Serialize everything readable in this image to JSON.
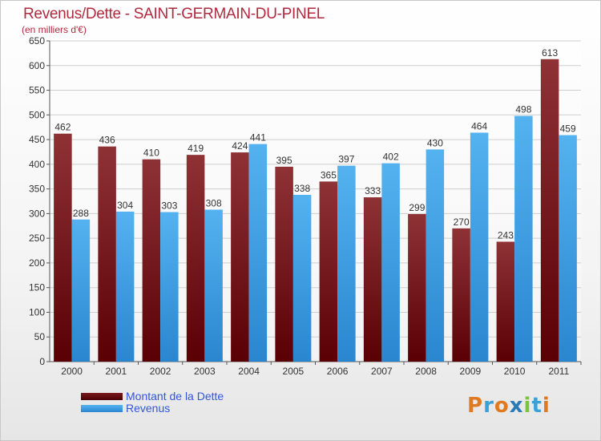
{
  "header": {
    "title": "Revenus/Dette - SAINT-GERMAIN-DU-PINEL",
    "subtitle": "(en milliers d'€)"
  },
  "colors": {
    "debt": "#7a1a1e",
    "revenue": "#3d9ce3",
    "title": "#b02a3e"
  },
  "legend": {
    "debt_label": "Montant de la Dette",
    "revenue_label": "Revenus"
  },
  "logo": {
    "text": "Proxiti",
    "colors": [
      "#e07a22",
      "#3aa0d8",
      "#e07a22",
      "#2a7ab8",
      "#7cc242",
      "#3aa0d8",
      "#e07a22"
    ]
  },
  "chart_data": {
    "type": "bar",
    "title": "Revenus/Dette - SAINT-GERMAIN-DU-PINEL",
    "subtitle": "(en milliers d'€)",
    "xlabel": "",
    "ylabel": "",
    "categories": [
      "2000",
      "2001",
      "2002",
      "2003",
      "2004",
      "2005",
      "2006",
      "2007",
      "2008",
      "2009",
      "2010",
      "2011"
    ],
    "series": [
      {
        "name": "Montant de la Dette",
        "values": [
          462,
          436,
          410,
          419,
          424,
          395,
          365,
          333,
          299,
          270,
          243,
          613
        ]
      },
      {
        "name": "Revenus",
        "values": [
          288,
          304,
          303,
          308,
          441,
          338,
          397,
          402,
          430,
          464,
          498,
          459
        ]
      }
    ],
    "ylim": [
      0,
      650
    ],
    "yticks": [
      0,
      50,
      100,
      150,
      200,
      250,
      300,
      350,
      400,
      450,
      500,
      550,
      600,
      650
    ],
    "grid": true,
    "legend_position": "bottom-left"
  }
}
